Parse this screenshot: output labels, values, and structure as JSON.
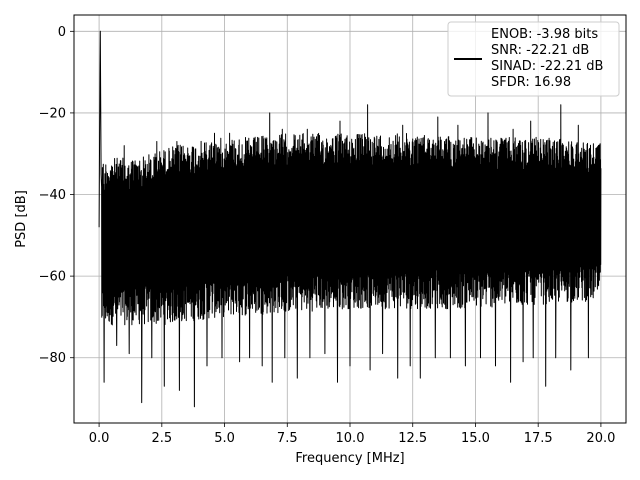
{
  "chart_data": {
    "type": "line",
    "title": "",
    "xlabel": "Frequency [MHz]",
    "ylabel": "PSD [dB]",
    "xlim": [
      -1.0,
      21.0
    ],
    "ylim": [
      -96,
      4
    ],
    "xticks": [
      0.0,
      2.5,
      5.0,
      7.5,
      10.0,
      12.5,
      15.0,
      17.5,
      20.0
    ],
    "xtick_labels": [
      "0.0",
      "2.5",
      "5.0",
      "7.5",
      "10.0",
      "12.5",
      "15.0",
      "17.5",
      "20.0"
    ],
    "yticks": [
      0,
      -20,
      -40,
      -60,
      -80
    ],
    "ytick_labels": [
      "0",
      "−20",
      "−40",
      "−60",
      "−80"
    ],
    "grid": true,
    "legend_position": "top-right",
    "series": [
      {
        "name": "ENOB: -3.98 bits\nSNR: -22.21 dB\nSINAD: -22.21 dB\nSFDR: 16.98",
        "color": "#000000",
        "x_range": [
          0.0,
          20.0
        ],
        "dc_peak": {
          "x": 0.05,
          "y": 0.0
        },
        "noise_upper_envelope": [
          [
            0.0,
            -32
          ],
          [
            0.5,
            -31
          ],
          [
            1.0,
            -31
          ],
          [
            1.5,
            -31
          ],
          [
            2.0,
            -30
          ],
          [
            2.5,
            -29
          ],
          [
            3.0,
            -28
          ],
          [
            4.0,
            -27
          ],
          [
            5.0,
            -26
          ],
          [
            6.0,
            -26
          ],
          [
            7.5,
            -25
          ],
          [
            10.0,
            -25
          ],
          [
            12.5,
            -25
          ],
          [
            15.0,
            -26
          ],
          [
            17.5,
            -26
          ],
          [
            20.0,
            -27
          ]
        ],
        "noise_lower_envelope": [
          [
            0.0,
            -72
          ],
          [
            2.5,
            -72
          ],
          [
            5.0,
            -70
          ],
          [
            7.5,
            -69
          ],
          [
            10.0,
            -68
          ],
          [
            12.5,
            -68
          ],
          [
            15.0,
            -68
          ],
          [
            17.5,
            -67
          ],
          [
            20.0,
            -66
          ]
        ],
        "spurs_high": [
          [
            1.0,
            -28
          ],
          [
            2.3,
            -27
          ],
          [
            3.1,
            -27
          ],
          [
            4.6,
            -25
          ],
          [
            5.2,
            -25
          ],
          [
            6.8,
            -20
          ],
          [
            7.3,
            -24
          ],
          [
            8.3,
            -24
          ],
          [
            9.6,
            -22
          ],
          [
            10.7,
            -18
          ],
          [
            11.3,
            -23
          ],
          [
            12.1,
            -23
          ],
          [
            13.5,
            -21
          ],
          [
            14.3,
            -23
          ],
          [
            15.5,
            -20
          ],
          [
            16.5,
            -24
          ],
          [
            17.2,
            -22
          ],
          [
            17.8,
            -21
          ],
          [
            18.4,
            -18
          ],
          [
            19.1,
            -23
          ]
        ],
        "spurs_low": [
          [
            0.2,
            -86
          ],
          [
            0.7,
            -77
          ],
          [
            1.2,
            -79
          ],
          [
            1.7,
            -91
          ],
          [
            2.1,
            -80
          ],
          [
            2.6,
            -87
          ],
          [
            3.2,
            -88
          ],
          [
            3.8,
            -92
          ],
          [
            4.3,
            -82
          ],
          [
            4.9,
            -80
          ],
          [
            5.6,
            -81
          ],
          [
            6.0,
            -80
          ],
          [
            6.5,
            -82
          ],
          [
            6.9,
            -86
          ],
          [
            7.4,
            -80
          ],
          [
            7.9,
            -85
          ],
          [
            8.4,
            -80
          ],
          [
            9.0,
            -79
          ],
          [
            9.5,
            -86
          ],
          [
            10.0,
            -82
          ],
          [
            10.8,
            -83
          ],
          [
            11.3,
            -79
          ],
          [
            11.9,
            -85
          ],
          [
            12.4,
            -82
          ],
          [
            12.8,
            -85
          ],
          [
            13.4,
            -80
          ],
          [
            14.0,
            -80
          ],
          [
            14.6,
            -82
          ],
          [
            15.2,
            -80
          ],
          [
            15.8,
            -82
          ],
          [
            16.4,
            -86
          ],
          [
            16.9,
            -81
          ],
          [
            17.3,
            -80
          ],
          [
            17.8,
            -87
          ],
          [
            18.2,
            -80
          ],
          [
            18.8,
            -83
          ],
          [
            19.5,
            -80
          ]
        ]
      }
    ]
  }
}
